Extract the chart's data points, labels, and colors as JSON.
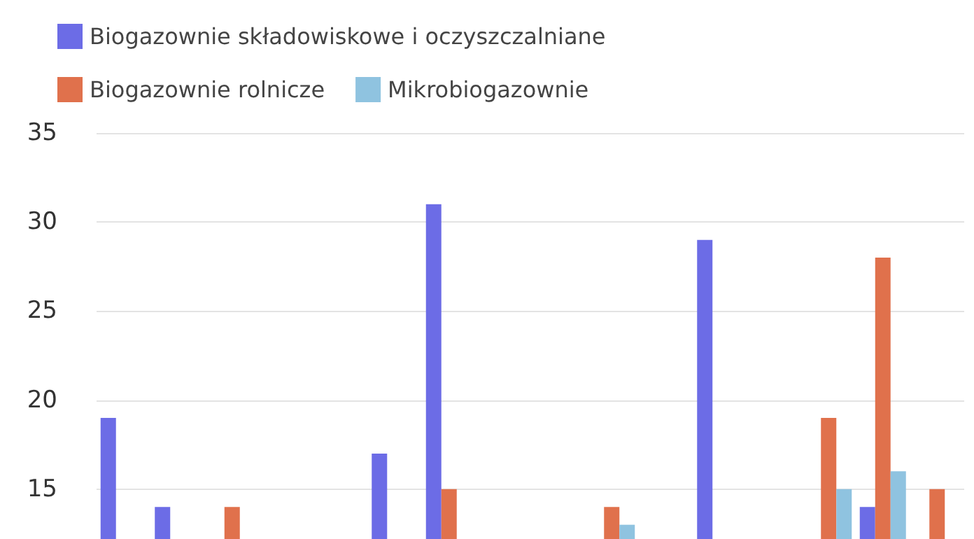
{
  "chart_data": {
    "type": "bar",
    "categories": [
      null,
      null,
      null,
      null,
      null,
      null,
      null,
      null,
      null,
      null,
      null,
      null,
      null,
      null,
      null,
      null
    ],
    "series": [
      {
        "name": "Biogazownie składowiskowe i oczyszczalniane",
        "color": "#6c6ce6",
        "values": [
          19,
          14,
          null,
          null,
          null,
          17,
          31,
          null,
          null,
          null,
          null,
          29,
          null,
          null,
          14,
          null
        ]
      },
      {
        "name": "Biogazownie rolnicze",
        "color": "#e0714c",
        "values": [
          null,
          null,
          14,
          null,
          null,
          null,
          15,
          null,
          null,
          14,
          null,
          null,
          null,
          19,
          28,
          15
        ]
      },
      {
        "name": "Mikrobiogazownie",
        "color": "#8fc3e0",
        "values": [
          null,
          null,
          null,
          null,
          null,
          null,
          null,
          null,
          null,
          13,
          null,
          null,
          null,
          15,
          16,
          null
        ]
      }
    ],
    "ylim": [
      12.2,
      35
    ],
    "yticks": [
      15,
      20,
      25,
      30,
      35
    ],
    "grid": "y",
    "legend": "top left",
    "tick_labels": "y"
  }
}
